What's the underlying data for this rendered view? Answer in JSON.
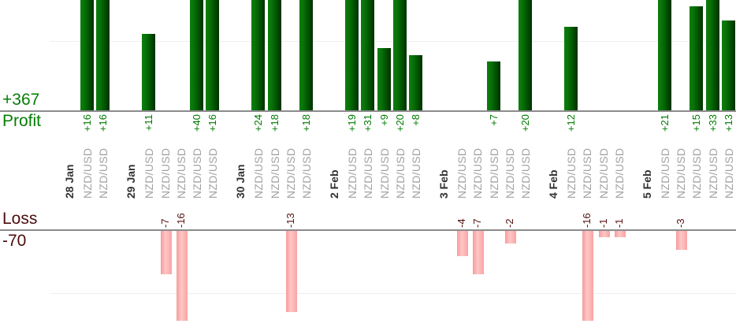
{
  "axis_labels": {
    "profit_total": "+367",
    "profit_name": "Profit",
    "loss_name": "Loss",
    "loss_total": "-70"
  },
  "chart_data": {
    "type": "bar",
    "title": "",
    "instrument": "NZD/USD",
    "categories": [
      "28 Jan",
      "29 Jan",
      "30 Jan",
      "2 Feb",
      "3 Feb",
      "4 Feb",
      "5 Feb"
    ],
    "groups": [
      {
        "date": "28 Jan",
        "trades": [
          16,
          16
        ]
      },
      {
        "date": "29 Jan",
        "trades": [
          11,
          -7,
          -16,
          40,
          16
        ]
      },
      {
        "date": "30 Jan",
        "trades": [
          24,
          18,
          -13,
          18
        ]
      },
      {
        "date": "2 Feb",
        "trades": [
          19,
          31,
          9,
          20,
          8
        ]
      },
      {
        "date": "3 Feb",
        "trades": [
          -4,
          -7,
          7,
          -2,
          20
        ]
      },
      {
        "date": "4 Feb",
        "trades": [
          12,
          -16,
          -1,
          -1
        ]
      },
      {
        "date": "5 Feb",
        "trades": [
          21,
          -3,
          15,
          33,
          13
        ]
      }
    ],
    "totals": {
      "profit": 367,
      "loss": -70
    },
    "gridlines": {
      "profit_value": 10,
      "loss_value": -10
    },
    "ylim_profit_visible": [
      0,
      16
    ],
    "ylim_loss_visible": [
      0,
      -14.5
    ],
    "legend": "none",
    "colors": {
      "profit_bar_light": "#0e7e0e",
      "profit_bar_dark": "#003000",
      "loss_bar_light": "#ffc6c6",
      "loss_bar_dark": "#f59c9c",
      "profit_text": "#007b00",
      "loss_text": "#551010",
      "big_profit_text": "#067d06",
      "big_loss_text": "#4c0c0c",
      "date_text": "#333333",
      "instrument_text": "#a2a2a2",
      "axis_line": "#8b8b8b",
      "gridline": "#eeeeee"
    }
  }
}
